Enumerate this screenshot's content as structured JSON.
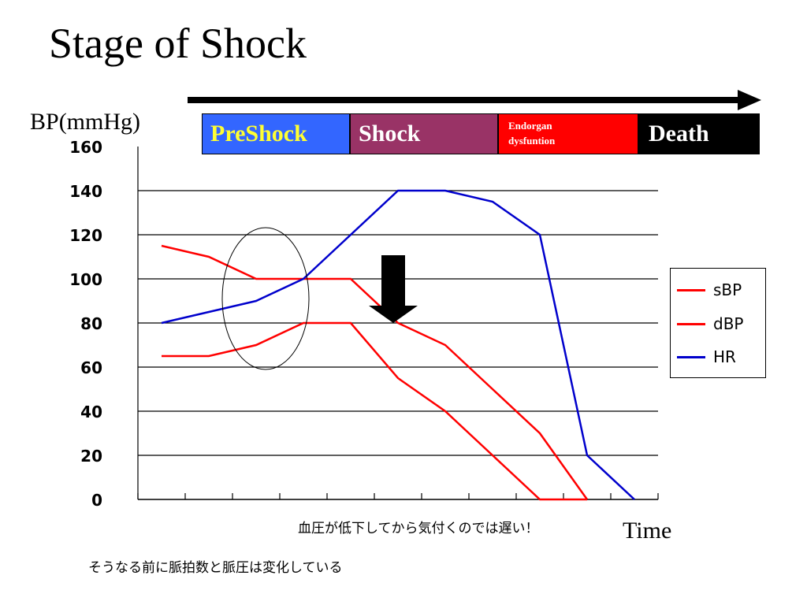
{
  "title": "Stage of Shock",
  "stages": [
    {
      "label": "PreShock",
      "color": "#3366ff"
    },
    {
      "label": "Shock",
      "color": "#993366"
    },
    {
      "label": "Endorgan\n dysfuntion",
      "color": "#ff0000"
    },
    {
      "label": "Death",
      "color": "#000000"
    }
  ],
  "notes": {
    "line1": "血圧が低下してから気付くのでは遅い！",
    "line2": "そうなる前に脈拍数と脈圧は変化している"
  },
  "chart_data": {
    "type": "line",
    "ylabel": "BP(mmHg)",
    "xlabel": "Time",
    "ylim": [
      0,
      160
    ],
    "yticks": [
      0,
      20,
      40,
      60,
      80,
      100,
      120,
      140,
      160
    ],
    "grid": true,
    "legend_position": "right",
    "x": [
      0,
      1,
      2,
      3,
      4,
      5,
      6,
      7,
      8,
      9,
      10
    ],
    "series": [
      {
        "name": "sBP",
        "color": "#ff0000",
        "values": [
          115,
          110,
          100,
          100,
          100,
          80,
          70,
          50,
          30,
          0,
          null
        ]
      },
      {
        "name": "dBP",
        "color": "#ff0000",
        "values": [
          65,
          65,
          70,
          80,
          80,
          55,
          40,
          20,
          0,
          0,
          null
        ]
      },
      {
        "name": "HR",
        "color": "#0000cc",
        "values": [
          80,
          85,
          90,
          100,
          120,
          140,
          140,
          135,
          120,
          20,
          0
        ]
      }
    ],
    "annotations": [
      "ellipse-around-early-change",
      "down-arrow-at-bp-drop",
      "time-arrow"
    ]
  }
}
